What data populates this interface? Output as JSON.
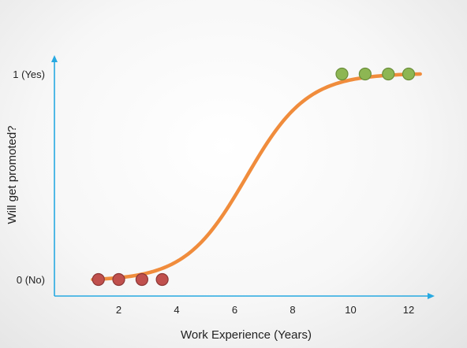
{
  "chart_data": {
    "type": "scatter",
    "title": "",
    "xlabel": "Work Experience (Years)",
    "ylabel": "Will get promoted?",
    "xlim": [
      0,
      12.6
    ],
    "ylim": [
      0,
      1
    ],
    "grid": false,
    "x_ticks": [
      {
        "value": 2,
        "label": "2"
      },
      {
        "value": 4,
        "label": "4"
      },
      {
        "value": 6,
        "label": "6"
      },
      {
        "value": 8,
        "label": "8"
      },
      {
        "value": 10,
        "label": "10"
      },
      {
        "value": 12,
        "label": "12"
      }
    ],
    "y_ticks": [
      {
        "value": 0,
        "label": "0 (No)"
      },
      {
        "value": 1,
        "label": "1 (Yes)"
      }
    ],
    "curve": {
      "type": "logistic",
      "x_range": [
        1.1,
        12.4
      ],
      "midpoint": 6.4,
      "steepness": 0.95,
      "color": "#F08C3C"
    },
    "series": [
      {
        "values": [
          {
            "x": 1.3,
            "y": 0
          },
          {
            "x": 2.0,
            "y": 0
          },
          {
            "x": 2.8,
            "y": 0
          },
          {
            "x": 3.5,
            "y": 0
          }
        ],
        "color": "#C0504D",
        "stroke": "#8C3836"
      },
      {
        "values": [
          {
            "x": 9.7,
            "y": 1
          },
          {
            "x": 10.5,
            "y": 1
          },
          {
            "x": 11.3,
            "y": 1
          },
          {
            "x": 12.0,
            "y": 1
          }
        ],
        "color": "#8DB653",
        "stroke": "#6A8E3A"
      }
    ],
    "axis_color": "#27A9E1"
  }
}
